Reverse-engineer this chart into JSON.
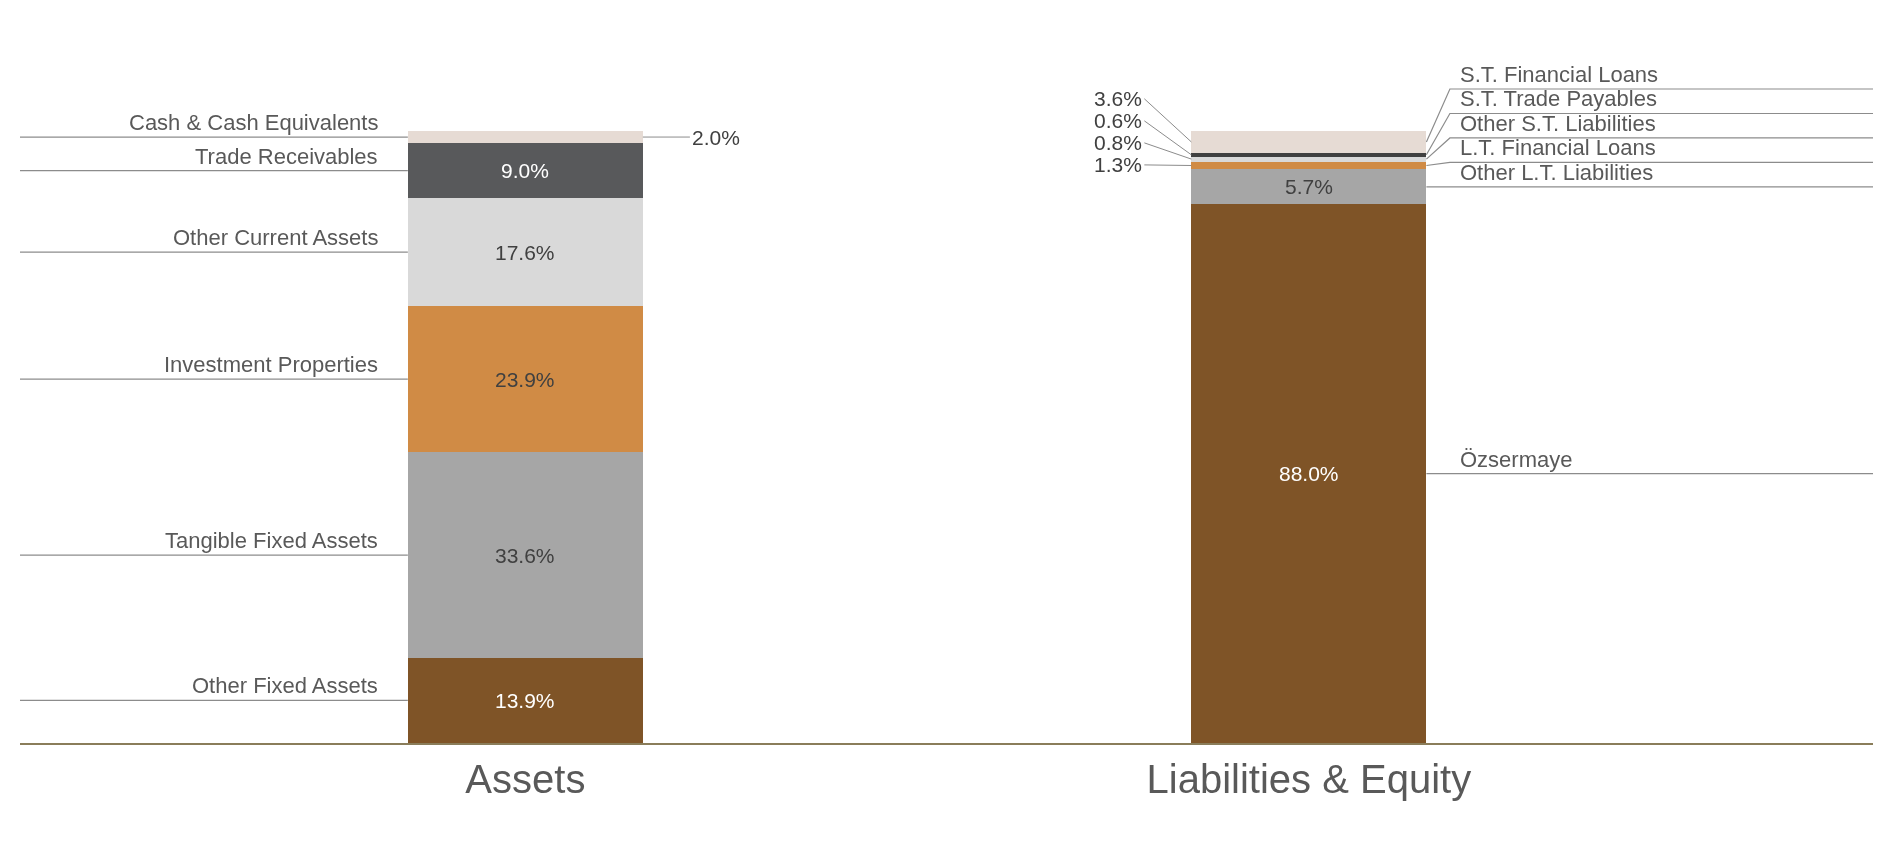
{
  "chart_data": {
    "type": "bar",
    "stacked": true,
    "legend": false,
    "categories": [
      "Assets",
      "Liabilities & Equity"
    ],
    "series": [
      {
        "name": "Other Fixed Assets",
        "color": "#7f5427",
        "values": [
          13.9,
          null
        ],
        "value_labels": [
          "13.9%",
          null
        ]
      },
      {
        "name": "Tangible Fixed Assets",
        "color": "#a6a6a6",
        "values": [
          33.6,
          null
        ],
        "value_labels": [
          "33.6%",
          null
        ]
      },
      {
        "name": "Investment Properties",
        "color": "#d08b45",
        "values": [
          23.9,
          null
        ],
        "value_labels": [
          "23.9%",
          null
        ]
      },
      {
        "name": "Other Current Assets",
        "color": "#d9d9d9",
        "values": [
          17.6,
          null
        ],
        "value_labels": [
          "17.6%",
          null
        ]
      },
      {
        "name": "Trade Receivables",
        "color": "#58595b",
        "values": [
          9.0,
          null
        ],
        "value_labels": [
          "9.0%",
          null
        ]
      },
      {
        "name": "Cash & Cash Equivalents",
        "color": "#e6dbd4",
        "values": [
          2.0,
          null
        ],
        "value_labels": [
          "2.0%",
          null
        ]
      },
      {
        "name": "Özsermaye",
        "color": "#7f5427",
        "values": [
          null,
          88.0
        ],
        "value_labels": [
          null,
          "88.0%"
        ]
      },
      {
        "name": "Other L.T. Liabilities",
        "color": "#a6a6a6",
        "values": [
          null,
          5.7
        ],
        "value_labels": [
          null,
          "5.7%"
        ]
      },
      {
        "name": "L.T. Financial Loans",
        "color": "#d08b45",
        "values": [
          null,
          1.3
        ],
        "value_labels": [
          null,
          "1.3%"
        ]
      },
      {
        "name": "Other S.T. Liabilities",
        "color": "#d9d9d9",
        "values": [
          null,
          0.8
        ],
        "value_labels": [
          null,
          "0.8%"
        ]
      },
      {
        "name": "S.T. Trade Payables",
        "color": "#404040",
        "values": [
          null,
          0.6
        ],
        "value_labels": [
          null,
          "0.6%"
        ]
      },
      {
        "name": "S.T. Financial Loans",
        "color": "#e6dbd4",
        "values": [
          null,
          3.6
        ],
        "value_labels": [
          null,
          "3.6%"
        ]
      }
    ]
  }
}
